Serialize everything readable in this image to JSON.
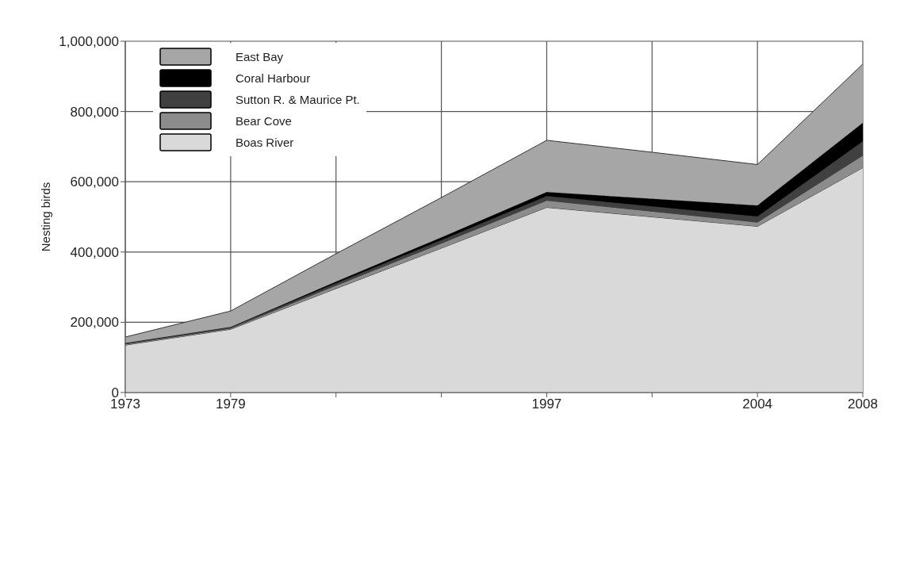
{
  "chart_data": {
    "type": "area",
    "ylabel": "Nesting birds",
    "stacked": true,
    "categories": [
      "1973",
      "1979",
      null,
      null,
      "1997",
      null,
      "2004",
      "2008"
    ],
    "series": [
      {
        "name": "Boas River",
        "color": "#d9d9d9",
        "values": [
          135000,
          180000,
          296000,
          411000,
          527000,
          500000,
          473000,
          640000
        ]
      },
      {
        "name": "Bear Cove",
        "color": "#8c8c8c",
        "values": [
          3000,
          3000,
          9000,
          14000,
          20000,
          16000,
          12000,
          35000
        ]
      },
      {
        "name": "Sutton R. & Maurice Pt.",
        "color": "#404040",
        "values": [
          2000,
          3000,
          6000,
          9000,
          12000,
          14000,
          16000,
          40000
        ]
      },
      {
        "name": "Coral Harbour",
        "color": "#000000",
        "values": [
          1000,
          1000,
          5000,
          8000,
          12000,
          22000,
          32000,
          53000
        ]
      },
      {
        "name": "East Bay",
        "color": "#a6a6a6",
        "values": [
          17000,
          45000,
          79000,
          113000,
          147000,
          132000,
          116000,
          167000
        ]
      }
    ],
    "ylim": [
      0,
      1000000
    ],
    "yticks": [
      {
        "value": 0,
        "label": "0"
      },
      {
        "value": 200000,
        "label": "200,000"
      },
      {
        "value": 400000,
        "label": "400,000"
      },
      {
        "value": 600000,
        "label": "600,000"
      },
      {
        "value": 800000,
        "label": "800,000"
      },
      {
        "value": 1000000,
        "label": "1,000,000"
      }
    ],
    "grid": true,
    "legend": "top left"
  }
}
